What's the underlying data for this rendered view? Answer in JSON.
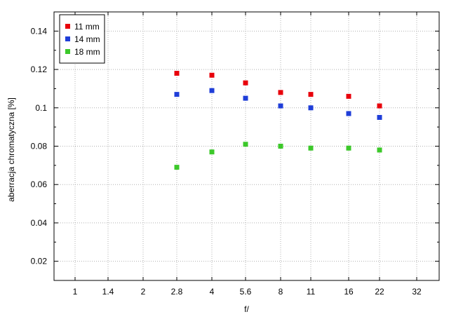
{
  "chart_data": {
    "type": "scatter",
    "xlabel": "f/",
    "ylabel": "aberracja chromatyczna [%]",
    "x_ticks": [
      "1",
      "1.4",
      "2",
      "2.8",
      "4",
      "5.6",
      "8",
      "11",
      "16",
      "22",
      "32"
    ],
    "y_ticks": [
      "0.02",
      "0.04",
      "0.06",
      "0.08",
      "0.1",
      "0.12",
      "0.14"
    ],
    "ylim": [
      0.01,
      0.15
    ],
    "grid": true,
    "legend_position": "top-left",
    "series": [
      {
        "name": "11 mm",
        "color": "#e8000b",
        "x": [
          "2.8",
          "4",
          "5.6",
          "8",
          "11",
          "16",
          "22"
        ],
        "values": [
          0.118,
          0.117,
          0.113,
          0.108,
          0.107,
          0.106,
          0.101
        ]
      },
      {
        "name": "14 mm",
        "color": "#1f3ed8",
        "x": [
          "2.8",
          "4",
          "5.6",
          "8",
          "11",
          "16",
          "22"
        ],
        "values": [
          0.107,
          0.109,
          0.105,
          0.101,
          0.1,
          0.097,
          0.095
        ]
      },
      {
        "name": "18 mm",
        "color": "#3cc82a",
        "x": [
          "2.8",
          "4",
          "5.6",
          "8",
          "11",
          "16",
          "22"
        ],
        "values": [
          0.069,
          0.077,
          0.081,
          0.08,
          0.079,
          0.079,
          0.078
        ]
      }
    ]
  }
}
